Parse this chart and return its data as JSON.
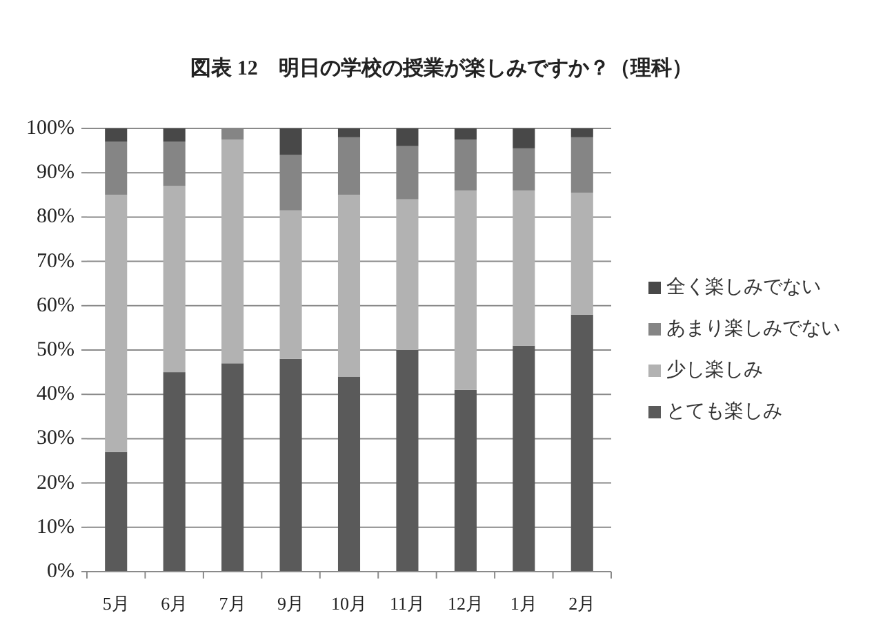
{
  "chart_data": {
    "type": "bar",
    "title": "図表 12　明日の学校の授業が楽しみですか？（理科）",
    "categories": [
      "5月",
      "6月",
      "7月",
      "9月",
      "10月",
      "11月",
      "12月",
      "1月",
      "2月"
    ],
    "stacked": true,
    "series": [
      {
        "name": "とても楽しみ",
        "color": "#5a5a5a",
        "values": [
          27,
          45,
          47,
          48,
          44,
          50,
          41,
          51,
          58
        ]
      },
      {
        "name": "少し楽しみ",
        "color": "#b2b2b2",
        "values": [
          58,
          42,
          50.5,
          33.5,
          41,
          34,
          45,
          35,
          27.5
        ]
      },
      {
        "name": "あまり楽しみでない",
        "color": "#858585",
        "values": [
          12,
          10,
          2.5,
          12.5,
          13,
          12,
          11.5,
          9.5,
          12.5
        ]
      },
      {
        "name": "全く楽しみでない",
        "color": "#484848",
        "values": [
          3,
          3,
          0,
          6,
          2,
          4,
          2.5,
          4.5,
          2
        ]
      }
    ],
    "ylim": [
      0,
      100
    ],
    "yticks": [
      {
        "value": 0,
        "label": "0%"
      },
      {
        "value": 10,
        "label": "10%"
      },
      {
        "value": 20,
        "label": "20%"
      },
      {
        "value": 30,
        "label": "30%"
      },
      {
        "value": 40,
        "label": "40%"
      },
      {
        "value": 50,
        "label": "50%"
      },
      {
        "value": 60,
        "label": "60%"
      },
      {
        "value": 70,
        "label": "70%"
      },
      {
        "value": 80,
        "label": "80%"
      },
      {
        "value": 90,
        "label": "90%"
      },
      {
        "value": 100,
        "label": "100%"
      }
    ],
    "grid": "y",
    "legend": "right"
  }
}
